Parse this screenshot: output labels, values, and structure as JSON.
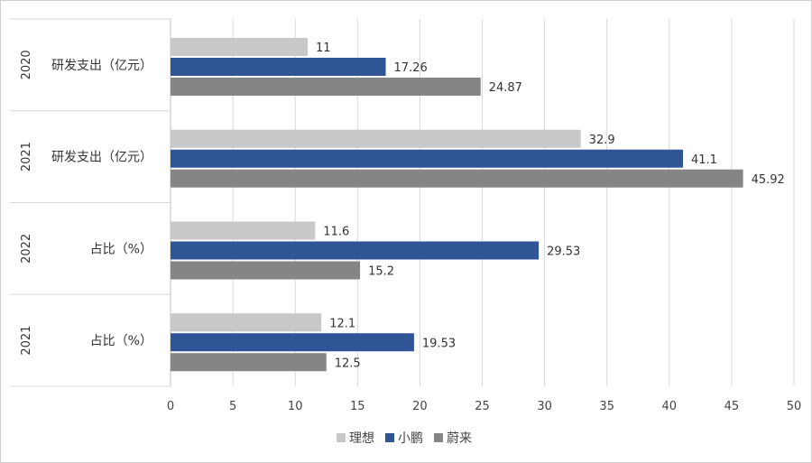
{
  "chart_data": {
    "type": "bar",
    "orientation": "horizontal",
    "groups": [
      {
        "year": "2020",
        "label": "研发支出（亿元）"
      },
      {
        "year": "2021",
        "label": "研发支出（亿元）"
      },
      {
        "year": "2022",
        "label": "占比（%）"
      },
      {
        "year": "2021",
        "label": "占比（%）"
      }
    ],
    "series": [
      {
        "name": "理想",
        "color": "#c8c8c8",
        "values": [
          11,
          32.9,
          11.6,
          12.1
        ],
        "labels": [
          "11",
          "32.9",
          "11.6",
          "12.1"
        ]
      },
      {
        "name": "小鹏",
        "color": "#2f5597",
        "values": [
          17.26,
          41.1,
          29.53,
          19.53
        ],
        "labels": [
          "17.26",
          "41.1",
          "29.53",
          "19.53"
        ]
      },
      {
        "name": "蔚来",
        "color": "#858585",
        "values": [
          24.87,
          45.92,
          15.2,
          12.5
        ],
        "labels": [
          "24.87",
          "45.92",
          "15.2",
          "12.5"
        ]
      }
    ],
    "xlim": [
      0,
      50
    ],
    "xticks": [
      "0",
      "5",
      "10",
      "15",
      "20",
      "25",
      "30",
      "35",
      "40",
      "45",
      "50"
    ],
    "grid": true,
    "legend_position": "bottom"
  }
}
